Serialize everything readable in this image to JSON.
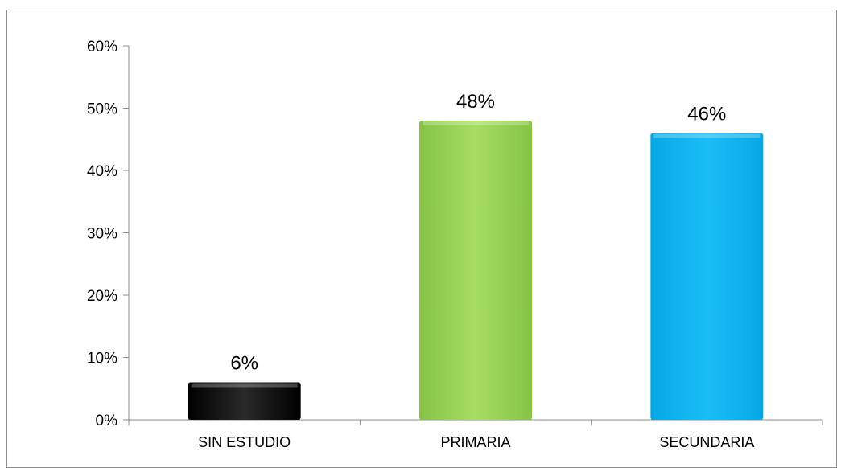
{
  "chart_data": {
    "type": "bar",
    "categories": [
      "SIN ESTUDIO",
      "PRIMARIA",
      "SECUNDARIA"
    ],
    "values": [
      6,
      48,
      46
    ],
    "data_labels": [
      "6%",
      "48%",
      "46%"
    ],
    "ylim": [
      0,
      60
    ],
    "yticks": [
      0,
      10,
      20,
      30,
      40,
      50,
      60
    ],
    "ytick_labels": [
      "0%",
      "10%",
      "20%",
      "30%",
      "40%",
      "50%",
      "60%"
    ],
    "grid": false,
    "legend": "none",
    "colors": [
      "#111111",
      "#9ed85a",
      "#12b8f2"
    ]
  }
}
